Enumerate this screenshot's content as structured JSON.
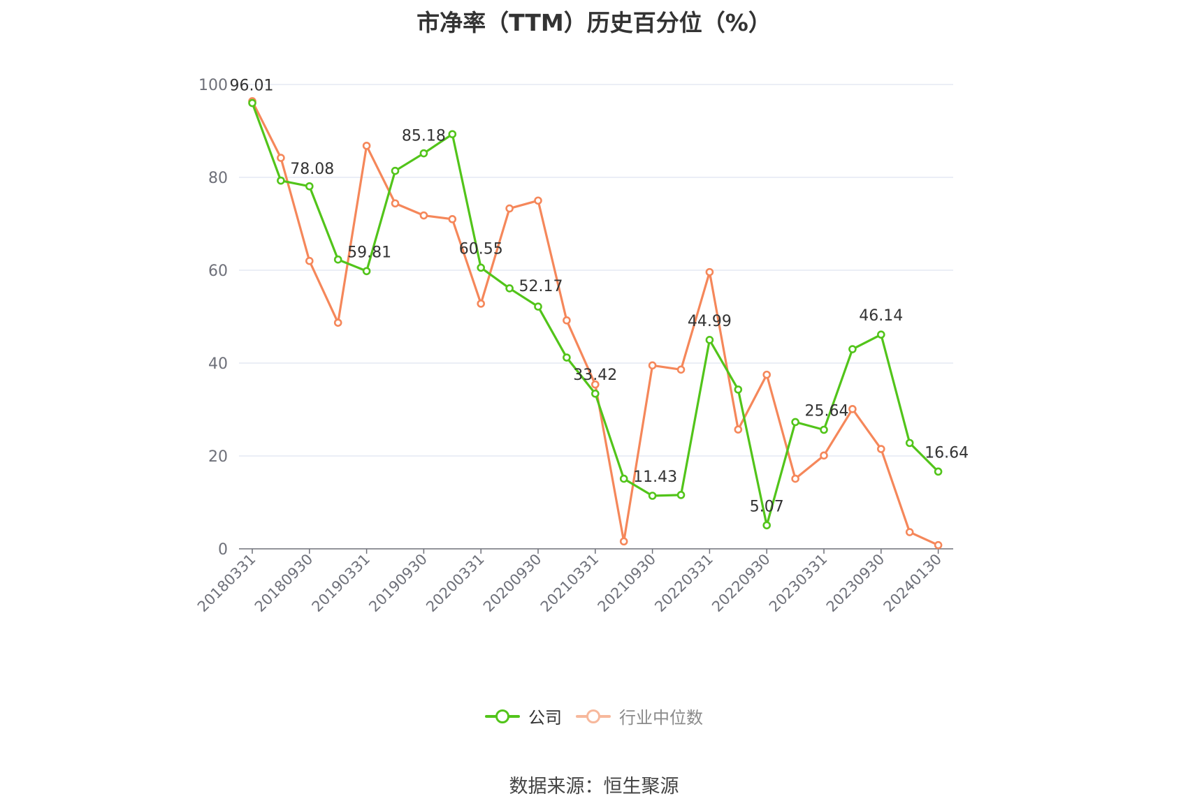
{
  "title": "市净率（TTM）历史百分位（%）",
  "source": "数据来源：恒生聚源",
  "colors": {
    "company": "#52c41a",
    "industry": "#f5875a",
    "grid": "#dfe3f1",
    "axis": "#6e7079"
  },
  "chart_data": {
    "type": "line",
    "title": "市净率（TTM）历史百分位（%）",
    "xlabel": "",
    "ylabel": "",
    "ylim": [
      0,
      100
    ],
    "y_ticks": [
      0,
      20,
      40,
      60,
      80,
      100
    ],
    "grid": true,
    "legend_placement": "bottom-center",
    "x": [
      "20180331",
      "20180630",
      "20180930",
      "20181231",
      "20190331",
      "20190630",
      "20190930",
      "20191231",
      "20200331",
      "20200630",
      "20200930",
      "20201231",
      "20210331",
      "20210630",
      "20210930",
      "20211231",
      "20220331",
      "20220630",
      "20220930",
      "20221231",
      "20230331",
      "20230630",
      "20230930",
      "20231231",
      "20240130"
    ],
    "x_tick_labels": [
      "20180331",
      "20180930",
      "20190331",
      "20190930",
      "20200331",
      "20200930",
      "20210331",
      "20210930",
      "20220331",
      "20220930",
      "20230331",
      "20230930",
      "20240130"
    ],
    "series": [
      {
        "name": "公司",
        "color": "#52c41a",
        "values": [
          96.01,
          79.3,
          78.08,
          62.3,
          59.81,
          81.4,
          85.18,
          89.3,
          60.55,
          56.1,
          52.17,
          41.2,
          33.42,
          15.1,
          11.43,
          11.6,
          44.99,
          34.3,
          5.07,
          27.3,
          25.64,
          43.0,
          46.14,
          22.8,
          16.64
        ],
        "labels": {
          "0": "96.01",
          "2": "78.08",
          "4": "59.81",
          "6": "85.18",
          "8": "60.55",
          "10": "52.17",
          "12": "33.42",
          "14": "11.43",
          "16": "44.99",
          "18": "5.07",
          "20": "25.64",
          "22": "46.14",
          "24": "16.64"
        }
      },
      {
        "name": "行业中位数",
        "color": "#f5875a",
        "values": [
          96.4,
          84.2,
          62.0,
          48.7,
          86.8,
          74.4,
          71.8,
          71.0,
          52.8,
          73.3,
          75.0,
          49.2,
          35.4,
          1.6,
          39.5,
          38.6,
          59.6,
          25.7,
          37.5,
          15.1,
          20.1,
          30.1,
          21.5,
          3.6,
          0.8
        ]
      }
    ]
  }
}
